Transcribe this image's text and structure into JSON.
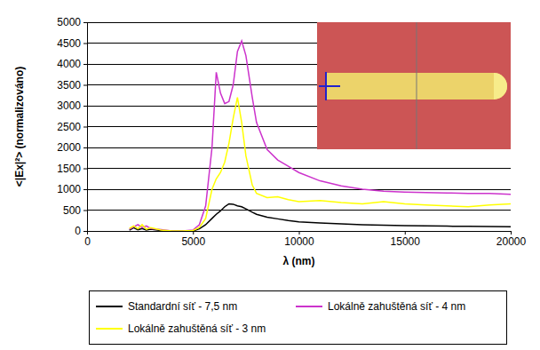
{
  "chart_data": {
    "type": "line",
    "x_label": "λ (nm)",
    "y_label": "<|Ex|²> (normalizováno)",
    "x": [
      2000,
      2200,
      2400,
      2600,
      2800,
      3000,
      3500,
      4000,
      4500,
      5000,
      5300,
      5600,
      5900,
      6100,
      6300,
      6500,
      6700,
      6900,
      7100,
      7300,
      7500,
      7800,
      8000,
      8500,
      9000,
      9500,
      10000,
      11000,
      12000,
      13000,
      14000,
      15000,
      16000,
      17000,
      18000,
      19000,
      20000
    ],
    "series": [
      {
        "name": "Standardní síť - 7,5 nm",
        "color": "#000000",
        "values": [
          20,
          80,
          30,
          60,
          20,
          40,
          10,
          0,
          0,
          0,
          50,
          150,
          300,
          400,
          480,
          580,
          650,
          640,
          600,
          580,
          530,
          450,
          400,
          330,
          290,
          250,
          220,
          190,
          170,
          150,
          140,
          130,
          120,
          115,
          110,
          105,
          100
        ]
      },
      {
        "name": "Lokálně zahuštěná síť - 4 nm",
        "color": "#cc33cc",
        "values": [
          40,
          100,
          150,
          80,
          120,
          60,
          30,
          0,
          0,
          20,
          150,
          600,
          2000,
          3800,
          3300,
          3050,
          3100,
          3500,
          4300,
          4550,
          4200,
          3200,
          2600,
          1950,
          1700,
          1550,
          1400,
          1200,
          1080,
          1000,
          950,
          930,
          920,
          910,
          900,
          900,
          880
        ]
      },
      {
        "name": "Lokálně zahuštěná síť - 3 nm",
        "color": "#ffff00",
        "values": [
          60,
          120,
          50,
          150,
          40,
          80,
          20,
          0,
          0,
          10,
          80,
          300,
          1000,
          1250,
          1400,
          1650,
          2100,
          2700,
          3200,
          2600,
          1800,
          1100,
          900,
          800,
          820,
          750,
          700,
          730,
          680,
          650,
          700,
          650,
          620,
          600,
          580,
          620,
          650
        ]
      }
    ],
    "xlim": [
      0,
      20000
    ],
    "xticks": [
      0,
      5000,
      10000,
      15000,
      20000
    ],
    "ylim": [
      0,
      5000
    ],
    "yticks": [
      0,
      500,
      1000,
      1500,
      2000,
      2500,
      3000,
      3500,
      4000,
      4500,
      5000
    ],
    "grid": true,
    "legend": "bottom"
  }
}
